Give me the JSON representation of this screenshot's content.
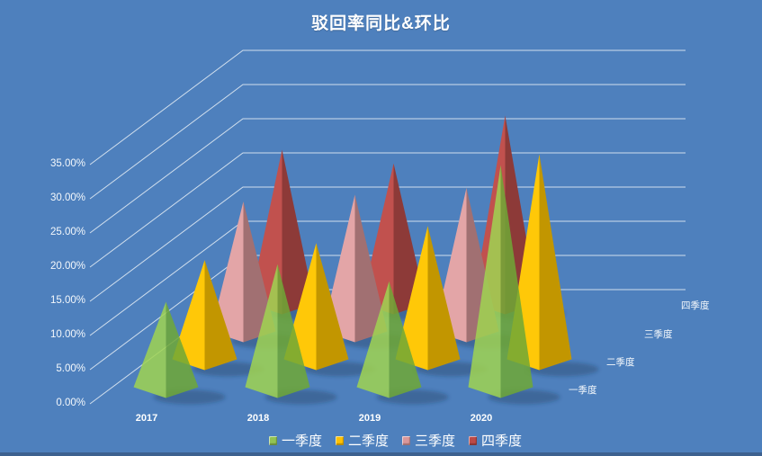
{
  "window": {
    "background_color": "#4e80bd",
    "bottom_edge_color": "#3d618f"
  },
  "title": "驳回率同比&环比",
  "chart_data": {
    "type": "3d-pyramid-column",
    "title": "驳回率同比&环比",
    "categories": [
      "2017",
      "2018",
      "2019",
      "2020"
    ],
    "series": [
      {
        "name": "一季度",
        "values": [
          12.5,
          18.0,
          15.5,
          32.5
        ],
        "face_light": "#a0d452",
        "face_dark": "#6fa836",
        "legend_color": "#92c353",
        "opacity": 0.85
      },
      {
        "name": "二季度",
        "values": [
          14.5,
          17.0,
          19.5,
          30.0
        ],
        "face_light": "#ffc808",
        "face_dark": "#c29600",
        "legend_color": "#ffc103",
        "opacity": 1
      },
      {
        "name": "三季度",
        "values": [
          19.0,
          20.0,
          21.0,
          0
        ],
        "face_light": "#e3a5a7",
        "face_dark": "#a17072",
        "legend_color": "#d9979a",
        "opacity": 1
      },
      {
        "name": "四季度",
        "values": [
          22.5,
          20.5,
          27.5,
          0
        ],
        "face_light": "#c1514e",
        "face_dark": "#8d3a38",
        "legend_color": "#bc4a47",
        "opacity": 1
      }
    ],
    "value_axis": {
      "min": 0,
      "max": 35,
      "step": 5,
      "unit": "%",
      "tick_labels": [
        "0.00%",
        "5.00%",
        "10.00%",
        "15.00%",
        "20.00%",
        "25.00%",
        "30.00%",
        "35.00%"
      ]
    },
    "depth_axis_labels": [
      "一季度",
      "二季度",
      "三季度",
      "四季度"
    ],
    "legend": {
      "position": "bottom",
      "items": [
        "一季度",
        "二季度",
        "三季度",
        "四季度"
      ]
    },
    "gridlines": true,
    "gridline_color": "#e8eef6",
    "text_color": "#ffffff",
    "shadow_color": "#16304f"
  }
}
